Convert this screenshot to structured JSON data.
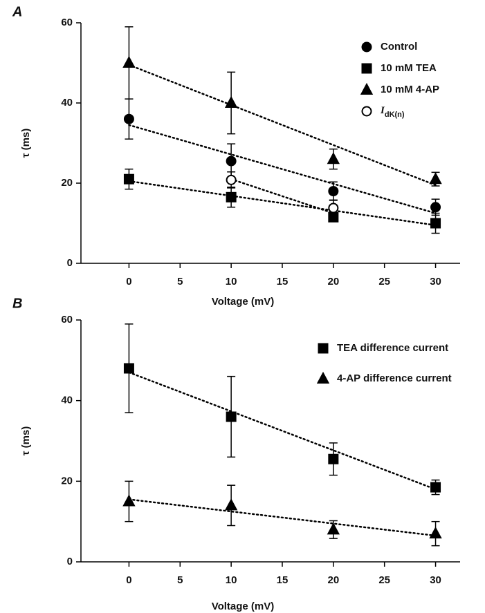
{
  "chart_data": [
    {
      "type": "scatter",
      "panel_label": "A",
      "xlabel": "Voltage (mV)",
      "ylabel": "τ (ms)",
      "xlim": [
        -4.7,
        32.4
      ],
      "ylim": [
        0,
        60
      ],
      "xticks": [
        0,
        5,
        10,
        15,
        20,
        25,
        30
      ],
      "yticks": [
        0,
        20,
        40,
        60
      ],
      "series": [
        {
          "name": "Control",
          "marker": "circle",
          "filled": true,
          "color": "#000000",
          "x": [
            0,
            10,
            20,
            30
          ],
          "values": [
            36,
            25.5,
            18,
            14
          ],
          "errors": [
            5,
            4.3,
            2.3,
            2
          ],
          "fit": {
            "x": [
              0,
              30
            ],
            "y": [
              34.5,
              12.5
            ]
          }
        },
        {
          "name": "10 mM TEA",
          "marker": "square",
          "filled": true,
          "color": "#000000",
          "x": [
            0,
            10,
            20,
            30
          ],
          "values": [
            21,
            16.5,
            11.5,
            10
          ],
          "errors": [
            2.5,
            2.5,
            1,
            2.5
          ],
          "fit": {
            "x": [
              0,
              30
            ],
            "y": [
              20.5,
              9.5
            ]
          }
        },
        {
          "name": "10 mM 4-AP",
          "marker": "triangle",
          "filled": true,
          "color": "#000000",
          "x": [
            0,
            10,
            20,
            30
          ],
          "values": [
            50,
            40,
            26,
            21
          ],
          "errors": [
            9,
            7.7,
            2.5,
            1.7
          ],
          "fit": {
            "x": [
              0,
              30
            ],
            "y": [
              49.5,
              19.5
            ]
          }
        },
        {
          "name": "I",
          "name_subscript": "dK(n)",
          "marker": "circle",
          "filled": false,
          "color": "#000000",
          "x": [
            10,
            20
          ],
          "values": [
            20.8,
            13.8
          ],
          "errors": [
            2,
            2
          ],
          "fit": {
            "x": [
              10,
              20
            ],
            "y": [
              21,
              12.5
            ]
          }
        }
      ]
    },
    {
      "type": "scatter",
      "panel_label": "B",
      "xlabel": "Voltage (mV)",
      "ylabel": "τ (ms)",
      "xlim": [
        -4.7,
        32.4
      ],
      "ylim": [
        0,
        60
      ],
      "xticks": [
        0,
        5,
        10,
        15,
        20,
        25,
        30
      ],
      "yticks": [
        0,
        20,
        40,
        60
      ],
      "series": [
        {
          "name": "TEA difference current",
          "marker": "square",
          "filled": true,
          "color": "#000000",
          "x": [
            0,
            10,
            20,
            30
          ],
          "values": [
            48,
            36,
            25.5,
            18.5
          ],
          "errors": [
            11,
            10,
            4,
            1.8
          ],
          "fit": {
            "x": [
              0,
              30
            ],
            "y": [
              47,
              18
            ]
          }
        },
        {
          "name": "4-AP difference current",
          "marker": "triangle",
          "filled": true,
          "color": "#000000",
          "x": [
            0,
            10,
            20,
            30
          ],
          "values": [
            15,
            14,
            8,
            7
          ],
          "errors": [
            5,
            5,
            2.2,
            3
          ],
          "fit": {
            "x": [
              0,
              30
            ],
            "y": [
              15.5,
              6.5
            ]
          }
        }
      ]
    }
  ]
}
